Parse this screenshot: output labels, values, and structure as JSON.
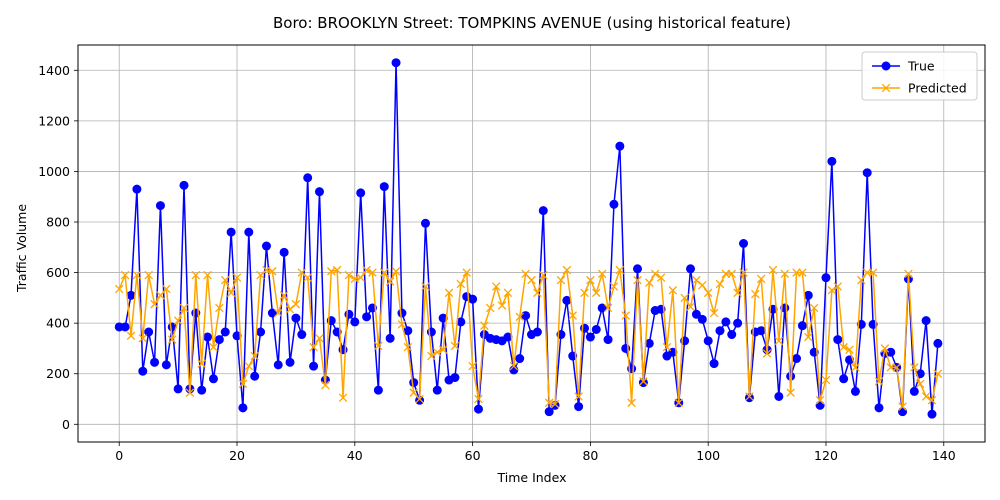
{
  "chart_data": {
    "type": "line",
    "title": "Boro: BROOKLYN Street: TOMPKINS AVENUE (using historical feature)",
    "xlabel": "Time Index",
    "ylabel": "Traffic Volume",
    "xlim": [
      -7,
      147
    ],
    "ylim": [
      -70,
      1500
    ],
    "xticks": [
      0,
      20,
      40,
      60,
      80,
      100,
      120,
      140
    ],
    "yticks": [
      0,
      200,
      400,
      600,
      800,
      1000,
      1200,
      1400
    ],
    "grid": true,
    "legend_position": "top-right",
    "series": [
      {
        "name": "True",
        "color": "#0000ff",
        "marker": "circle",
        "values": [
          385,
          385,
          510,
          930,
          210,
          365,
          245,
          865,
          235,
          385,
          140,
          945,
          140,
          440,
          135,
          345,
          180,
          335,
          365,
          760,
          350,
          65,
          760,
          190,
          365,
          705,
          440,
          235,
          680,
          245,
          420,
          355,
          975,
          230,
          920,
          175,
          410,
          365,
          295,
          435,
          405,
          915,
          425,
          460,
          135,
          940,
          340,
          1430,
          440,
          370,
          165,
          95,
          795,
          365,
          135,
          420,
          175,
          185,
          405,
          505,
          495,
          60,
          355,
          340,
          335,
          330,
          345,
          215,
          260,
          430,
          355,
          365,
          845,
          50,
          75,
          355,
          490,
          270,
          70,
          380,
          345,
          375,
          460,
          335,
          870,
          1100,
          300,
          220,
          615,
          165,
          320,
          450,
          455,
          270,
          285,
          85,
          330,
          615,
          435,
          415,
          330,
          240,
          370,
          405,
          355,
          400,
          715,
          105,
          365,
          370,
          295,
          455,
          110,
          460,
          190,
          260,
          390,
          510,
          285,
          75,
          580,
          1040,
          335,
          180,
          255,
          130,
          395,
          995,
          395,
          65,
          280,
          285,
          225,
          50,
          575,
          130,
          200,
          410,
          40,
          320
        ]
      },
      {
        "name": "Predicted",
        "color": "#ffa500",
        "marker": "x",
        "values": [
          535,
          590,
          350,
          590,
          340,
          590,
          475,
          510,
          535,
          335,
          410,
          460,
          125,
          590,
          240,
          590,
          305,
          460,
          570,
          520,
          580,
          160,
          230,
          270,
          590,
          610,
          605,
          440,
          510,
          455,
          475,
          600,
          580,
          305,
          340,
          155,
          605,
          610,
          105,
          590,
          575,
          580,
          610,
          600,
          310,
          600,
          565,
          605,
          395,
          305,
          125,
          100,
          545,
          270,
          285,
          295,
          520,
          310,
          555,
          600,
          230,
          100,
          390,
          460,
          545,
          470,
          520,
          230,
          425,
          595,
          570,
          520,
          590,
          85,
          80,
          570,
          610,
          430,
          110,
          520,
          570,
          520,
          595,
          460,
          545,
          610,
          430,
          85,
          570,
          170,
          560,
          595,
          580,
          305,
          530,
          85,
          500,
          465,
          570,
          550,
          520,
          440,
          555,
          595,
          595,
          520,
          600,
          110,
          515,
          575,
          280,
          610,
          330,
          595,
          125,
          600,
          600,
          345,
          460,
          95,
          175,
          530,
          545,
          305,
          295,
          225,
          570,
          600,
          600,
          170,
          300,
          225,
          225,
          70,
          595,
          225,
          160,
          110,
          95,
          200
        ]
      }
    ]
  }
}
